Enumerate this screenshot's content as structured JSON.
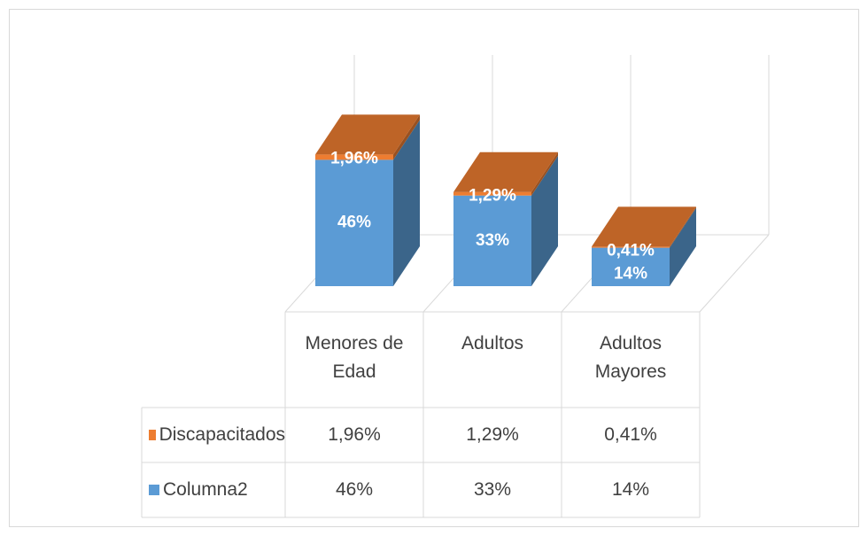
{
  "chart_data": {
    "type": "bar3d-stacked",
    "categories": [
      "Menores de Edad",
      "Adultos",
      "Adultos Mayores"
    ],
    "series": [
      {
        "name": "Discapacitados",
        "color": "#ed7d31",
        "values": [
          1.96,
          1.29,
          0.41
        ],
        "value_labels": [
          "1,96%",
          "1,29%",
          "0,41%"
        ]
      },
      {
        "name": "Columna2",
        "color": "#5b9bd5",
        "values": [
          46,
          33,
          14
        ],
        "value_labels": [
          "46%",
          "33%",
          "14%"
        ]
      }
    ],
    "ylim": [
      0,
      50
    ]
  }
}
